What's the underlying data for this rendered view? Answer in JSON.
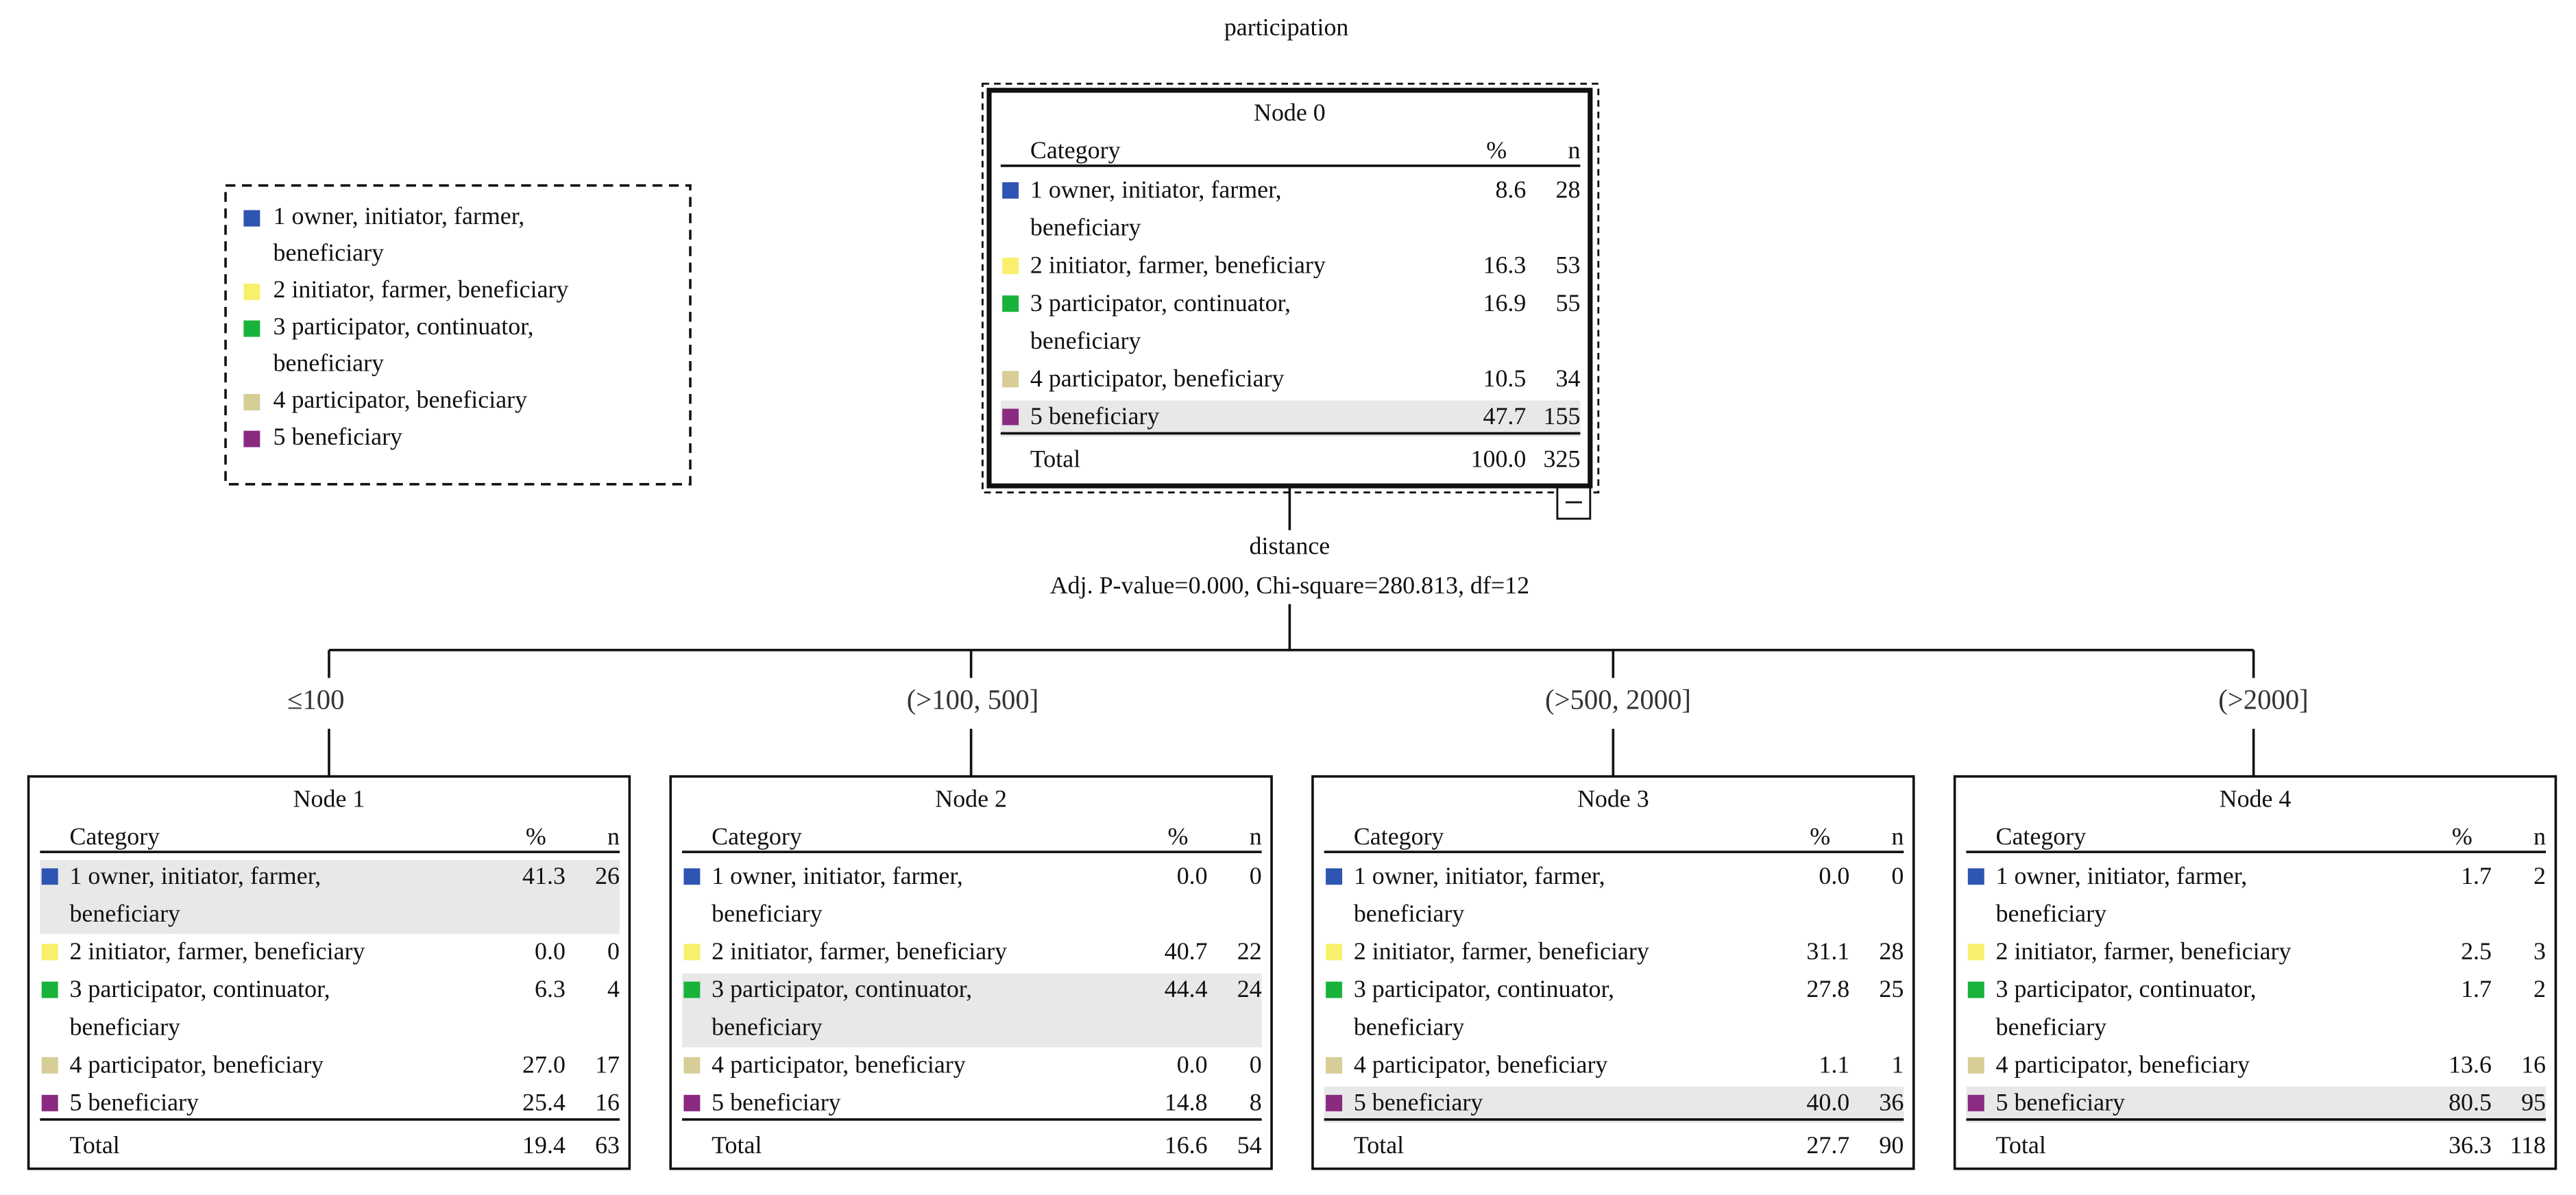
{
  "title": "participation",
  "legend": [
    {
      "label": [
        "1 owner, initiator, farmer,",
        "beneficiary"
      ],
      "color": "#2f55b3"
    },
    {
      "label": [
        "2 initiator, farmer, beneficiary"
      ],
      "color": "#f8f06c"
    },
    {
      "label": [
        "3 participator, continuator,",
        "beneficiary"
      ],
      "color": "#19b33c"
    },
    {
      "label": [
        "4 participator, beneficiary"
      ],
      "color": "#d6cd97"
    },
    {
      "label": [
        "5 beneficiary"
      ],
      "color": "#8a2a80"
    }
  ],
  "nodes": [
    {
      "title": "Node 0",
      "header": [
        "Category",
        "%",
        "n"
      ],
      "rows": [
        {
          "label": [
            "1 owner, initiator, farmer,",
            "beneficiary"
          ],
          "percent": "8.6",
          "n": "28"
        },
        {
          "label": [
            "2 initiator, farmer, beneficiary"
          ],
          "percent": "16.3",
          "n": "53"
        },
        {
          "label": [
            "3 participator, continuator,",
            "beneficiary"
          ],
          "percent": "16.9",
          "n": "55"
        },
        {
          "label": [
            "4 participator, beneficiary"
          ],
          "percent": "10.5",
          "n": "34"
        },
        {
          "label": [
            "5 beneficiary"
          ],
          "percent": "47.7",
          "n": "155"
        }
      ],
      "total": {
        "label": "Total",
        "percent": "100.0",
        "n": "325"
      }
    },
    {
      "title": "Node 1",
      "header": [
        "Category",
        "%",
        "n"
      ],
      "rows": [
        {
          "label": [
            "1 owner, initiator, farmer,",
            "beneficiary"
          ],
          "percent": "41.3",
          "n": "26"
        },
        {
          "label": [
            "2 initiator, farmer, beneficiary"
          ],
          "percent": "0.0",
          "n": "0"
        },
        {
          "label": [
            "3 participator, continuator,",
            "beneficiary"
          ],
          "percent": "6.3",
          "n": "4"
        },
        {
          "label": [
            "4 participator, beneficiary"
          ],
          "percent": "27.0",
          "n": "17"
        },
        {
          "label": [
            "5 beneficiary"
          ],
          "percent": "25.4",
          "n": "16"
        }
      ],
      "total": {
        "label": "Total",
        "percent": "19.4",
        "n": "63"
      }
    },
    {
      "title": "Node 2",
      "header": [
        "Category",
        "%",
        "n"
      ],
      "rows": [
        {
          "label": [
            "1 owner, initiator, farmer,",
            "beneficiary"
          ],
          "percent": "0.0",
          "n": "0"
        },
        {
          "label": [
            "2 initiator, farmer, beneficiary"
          ],
          "percent": "40.7",
          "n": "22"
        },
        {
          "label": [
            "3 participator, continuator,",
            "beneficiary"
          ],
          "percent": "44.4",
          "n": "24"
        },
        {
          "label": [
            "4 participator, beneficiary"
          ],
          "percent": "0.0",
          "n": "0"
        },
        {
          "label": [
            "5 beneficiary"
          ],
          "percent": "14.8",
          "n": "8"
        }
      ],
      "total": {
        "label": "Total",
        "percent": "16.6",
        "n": "54"
      }
    },
    {
      "title": "Node 3",
      "header": [
        "Category",
        "%",
        "n"
      ],
      "rows": [
        {
          "label": [
            "1 owner, initiator, farmer,",
            "beneficiary"
          ],
          "percent": "0.0",
          "n": "0"
        },
        {
          "label": [
            "2 initiator, farmer, beneficiary"
          ],
          "percent": "31.1",
          "n": "28"
        },
        {
          "label": [
            "3 participator, continuator,",
            "beneficiary"
          ],
          "percent": "27.8",
          "n": "25"
        },
        {
          "label": [
            "4 participator, beneficiary"
          ],
          "percent": "1.1",
          "n": "1"
        },
        {
          "label": [
            "5 beneficiary"
          ],
          "percent": "40.0",
          "n": "36"
        }
      ],
      "total": {
        "label": "Total",
        "percent": "27.7",
        "n": "90"
      }
    },
    {
      "title": "Node 4",
      "header": [
        "Category",
        "%",
        "n"
      ],
      "rows": [
        {
          "label": [
            "1 owner, initiator, farmer,",
            "beneficiary"
          ],
          "percent": "1.7",
          "n": "2"
        },
        {
          "label": [
            "2 initiator, farmer, beneficiary"
          ],
          "percent": "2.5",
          "n": "3"
        },
        {
          "label": [
            "3 participator, continuator,",
            "beneficiary"
          ],
          "percent": "1.7",
          "n": "2"
        },
        {
          "label": [
            "4 participator, beneficiary"
          ],
          "percent": "13.6",
          "n": "16"
        },
        {
          "label": [
            "5 beneficiary"
          ],
          "percent": "80.5",
          "n": "95"
        }
      ],
      "total": {
        "label": "Total",
        "percent": "36.3",
        "n": "118"
      }
    }
  ],
  "split": {
    "variable": "distance",
    "statistics": "Adj. P-value=0.000, Chi-square=280.813, df=12",
    "branches": [
      "≤100",
      "(>100, 500]",
      "(>500, 2000]",
      "(>2000]"
    ]
  }
}
